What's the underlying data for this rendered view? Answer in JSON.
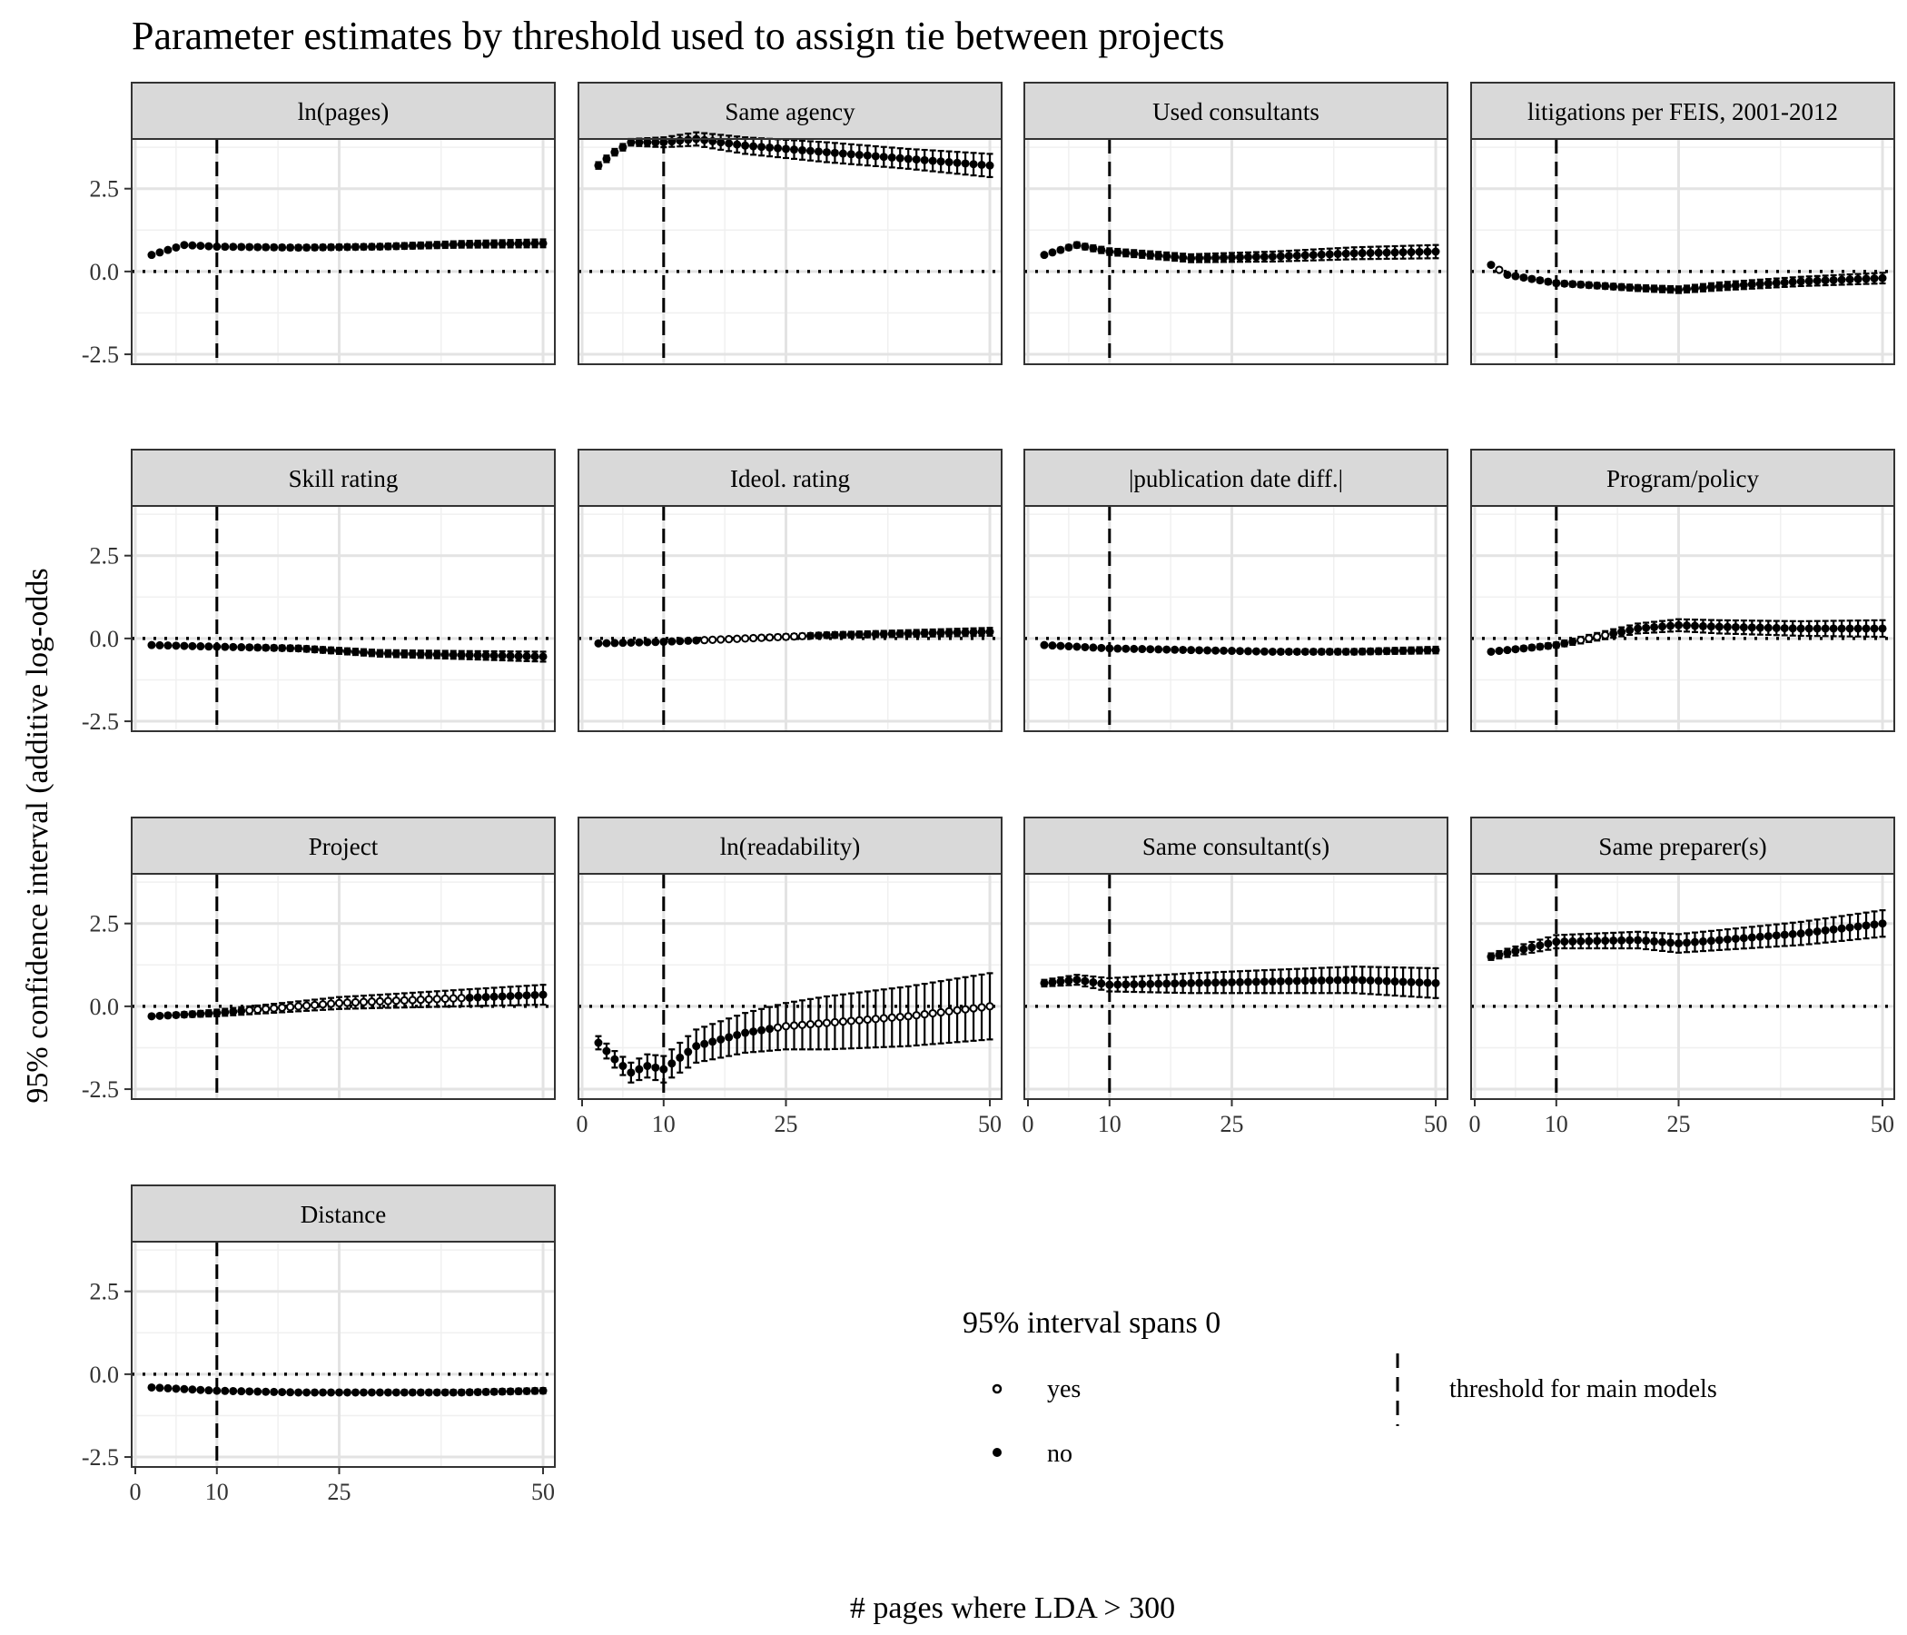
{
  "chart_data": {
    "type": "scatter",
    "title": "Parameter estimates by threshold used to assign tie between projects",
    "xlabel": "# pages where LDA > 300",
    "ylabel": "95% confidence interval (additive log-odds",
    "xlim": [
      2,
      50
    ],
    "ylim": [
      -2.8,
      4.0
    ],
    "x_ticks": [
      "0",
      "10",
      "25",
      "50"
    ],
    "y_ticks": [
      "-2.5",
      "0.0",
      "2.5"
    ],
    "grid": true,
    "reference_line_y": 0,
    "reference_line_x": 10,
    "legend": {
      "title": "95% interval spans 0",
      "items": [
        "yes",
        "no"
      ],
      "line_label": "threshold for main models",
      "placement": "bottom-right"
    },
    "panels": [
      {
        "title": "ln(pages)",
        "x": [
          2,
          6,
          10,
          20,
          30,
          40,
          50
        ],
        "estimate": [
          0.5,
          0.8,
          0.75,
          0.72,
          0.75,
          0.82,
          0.85
        ],
        "ci_halfwidth": [
          0.05,
          0.06,
          0.06,
          0.07,
          0.08,
          0.1,
          0.12
        ],
        "spans_zero": "no"
      },
      {
        "title": "Same agency",
        "x": [
          2,
          4,
          6,
          10,
          14,
          20,
          30,
          40,
          50
        ],
        "estimate": [
          3.2,
          3.6,
          3.9,
          3.9,
          4.0,
          3.8,
          3.6,
          3.4,
          3.2
        ],
        "ci_halfwidth": [
          0.1,
          0.1,
          0.1,
          0.15,
          0.2,
          0.25,
          0.3,
          0.3,
          0.35
        ],
        "spans_zero": "no"
      },
      {
        "title": "Used consultants",
        "x": [
          2,
          6,
          10,
          20,
          30,
          40,
          50
        ],
        "estimate": [
          0.5,
          0.8,
          0.6,
          0.4,
          0.45,
          0.55,
          0.6
        ],
        "ci_halfwidth": [
          0.05,
          0.08,
          0.1,
          0.12,
          0.15,
          0.18,
          0.2
        ],
        "spans_zero": "no"
      },
      {
        "title": "litigations per FEIS, 2001-2012",
        "x": [
          2,
          4,
          10,
          20,
          25,
          30,
          40,
          50
        ],
        "estimate": [
          0.2,
          -0.1,
          -0.35,
          -0.5,
          -0.55,
          -0.45,
          -0.3,
          -0.2
        ],
        "ci_halfwidth": [
          0.05,
          0.06,
          0.07,
          0.09,
          0.1,
          0.12,
          0.14,
          0.16
        ],
        "spans_zero": "mixed"
      },
      {
        "title": "Skill rating",
        "x": [
          2,
          10,
          20,
          30,
          40,
          50
        ],
        "estimate": [
          -0.2,
          -0.25,
          -0.3,
          -0.45,
          -0.5,
          -0.55
        ],
        "ci_halfwidth": [
          0.04,
          0.05,
          0.08,
          0.1,
          0.12,
          0.15
        ],
        "spans_zero": "no"
      },
      {
        "title": "Ideol. rating",
        "x": [
          2,
          10,
          20,
          30,
          40,
          50
        ],
        "estimate": [
          -0.15,
          -0.1,
          0.0,
          0.1,
          0.15,
          0.2
        ],
        "ci_halfwidth": [
          0.04,
          0.05,
          0.06,
          0.08,
          0.1,
          0.12
        ],
        "spans_zero": "mixed"
      },
      {
        "title": "|publication date diff.|",
        "x": [
          2,
          10,
          20,
          30,
          40,
          50
        ],
        "estimate": [
          -0.2,
          -0.3,
          -0.35,
          -0.4,
          -0.4,
          -0.35
        ],
        "ci_halfwidth": [
          0.03,
          0.04,
          0.05,
          0.06,
          0.08,
          0.1
        ],
        "spans_zero": "no"
      },
      {
        "title": "Program/policy",
        "x": [
          2,
          10,
          20,
          25,
          30,
          40,
          50
        ],
        "estimate": [
          -0.4,
          -0.2,
          0.3,
          0.4,
          0.35,
          0.3,
          0.3
        ],
        "ci_halfwidth": [
          0.05,
          0.08,
          0.15,
          0.18,
          0.2,
          0.22,
          0.25
        ],
        "spans_zero": "mixed"
      },
      {
        "title": "Project",
        "x": [
          2,
          10,
          20,
          25,
          30,
          40,
          50
        ],
        "estimate": [
          -0.3,
          -0.2,
          0.0,
          0.1,
          0.15,
          0.25,
          0.35
        ],
        "ci_halfwidth": [
          0.05,
          0.1,
          0.15,
          0.18,
          0.2,
          0.25,
          0.3
        ],
        "spans_zero": "mixed"
      },
      {
        "title": "ln(readability)",
        "x": [
          2,
          4,
          6,
          8,
          10,
          14,
          20,
          25,
          30,
          40,
          50
        ],
        "estimate": [
          -1.1,
          -1.6,
          -2.0,
          -1.8,
          -1.9,
          -1.2,
          -0.8,
          -0.6,
          -0.5,
          -0.3,
          0.0
        ],
        "ci_halfwidth": [
          0.2,
          0.25,
          0.3,
          0.35,
          0.4,
          0.5,
          0.6,
          0.7,
          0.8,
          0.9,
          1.0
        ],
        "spans_zero": "mixed"
      },
      {
        "title": "Same consultant(s)",
        "x": [
          2,
          6,
          10,
          20,
          30,
          40,
          50
        ],
        "estimate": [
          0.7,
          0.8,
          0.65,
          0.7,
          0.75,
          0.8,
          0.7
        ],
        "ci_halfwidth": [
          0.1,
          0.15,
          0.2,
          0.3,
          0.35,
          0.4,
          0.45
        ],
        "spans_zero": "no"
      },
      {
        "title": "Same preparer(s)",
        "x": [
          2,
          10,
          20,
          25,
          30,
          40,
          50
        ],
        "estimate": [
          1.5,
          1.95,
          2.0,
          1.9,
          2.0,
          2.2,
          2.5
        ],
        "ci_halfwidth": [
          0.1,
          0.2,
          0.25,
          0.28,
          0.3,
          0.35,
          0.4
        ],
        "spans_zero": "no"
      },
      {
        "title": "Distance",
        "x": [
          2,
          10,
          20,
          30,
          40,
          50
        ],
        "estimate": [
          -0.4,
          -0.5,
          -0.55,
          -0.55,
          -0.55,
          -0.5
        ],
        "ci_halfwidth": [
          0.03,
          0.04,
          0.05,
          0.06,
          0.07,
          0.08
        ],
        "spans_zero": "no"
      }
    ]
  }
}
